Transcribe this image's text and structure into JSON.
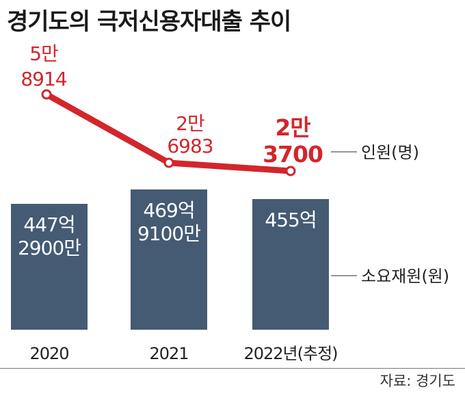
{
  "title": "경기도의 극저신용자대출 추이",
  "source": "자료: 경기도",
  "colors": {
    "bar": "#455a73",
    "line": "#d2262c",
    "text_dark": "#222222",
    "bar_text": "#ffffff"
  },
  "chart_data": {
    "type": "bar",
    "categories": [
      "2020",
      "2021",
      "2022년(추정)"
    ],
    "series": [
      {
        "name": "소요재원(원)",
        "type": "bar",
        "values": [
          44729000000,
          46991000000,
          45500000000
        ],
        "labels": [
          [
            "447억",
            "2900만"
          ],
          [
            "469억",
            "9100만"
          ],
          [
            "455억"
          ]
        ]
      },
      {
        "name": "인원(명)",
        "type": "line",
        "values": [
          58914,
          26983,
          23700
        ],
        "labels": [
          [
            "5만",
            "8914"
          ],
          [
            "2만",
            "6983"
          ],
          [
            "2만",
            "3700"
          ]
        ]
      }
    ],
    "xlabel": "",
    "ylabel": "",
    "legend": "right"
  }
}
